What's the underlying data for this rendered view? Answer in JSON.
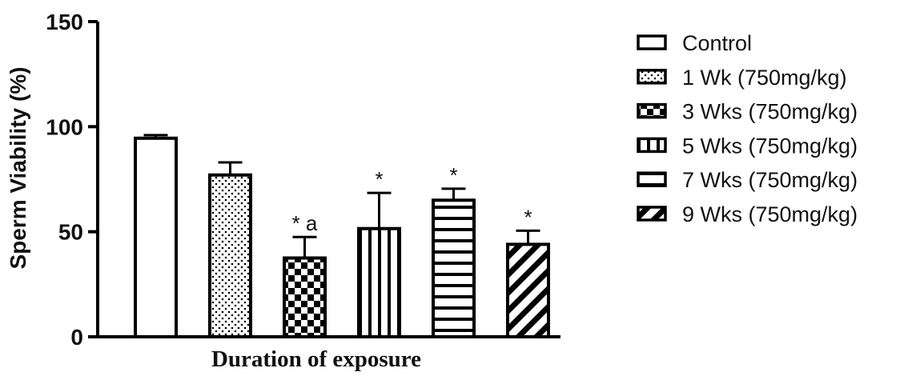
{
  "chart_data": {
    "type": "bar",
    "title": "",
    "xlabel": "Duration of exposure",
    "ylabel": "Sperm Viability (%)",
    "ylim": [
      0,
      150
    ],
    "yticks": [
      0,
      50,
      100,
      150
    ],
    "grid": false,
    "legend_position": "right",
    "series": [
      {
        "name": "Control",
        "value": 94.5,
        "error": 1.5,
        "annotation": "",
        "pattern": "white"
      },
      {
        "name": "1 Wk (750mg/kg)",
        "value": 77,
        "error": 6,
        "annotation": "",
        "pattern": "dots"
      },
      {
        "name": "3 Wks (750mg/kg)",
        "value": 37.5,
        "error": 10,
        "annotation": "* a",
        "pattern": "checker"
      },
      {
        "name": "5 Wks (750mg/kg)",
        "value": 51.5,
        "error": 17,
        "annotation": "*",
        "pattern": "vertical"
      },
      {
        "name": "7 Wks (750mg/kg)",
        "value": 65,
        "error": 5.5,
        "annotation": "*",
        "pattern": "horizontal"
      },
      {
        "name": "9 Wks (750mg/kg)",
        "value": 44,
        "error": 6.5,
        "annotation": "*",
        "pattern": "diagonal"
      }
    ]
  }
}
